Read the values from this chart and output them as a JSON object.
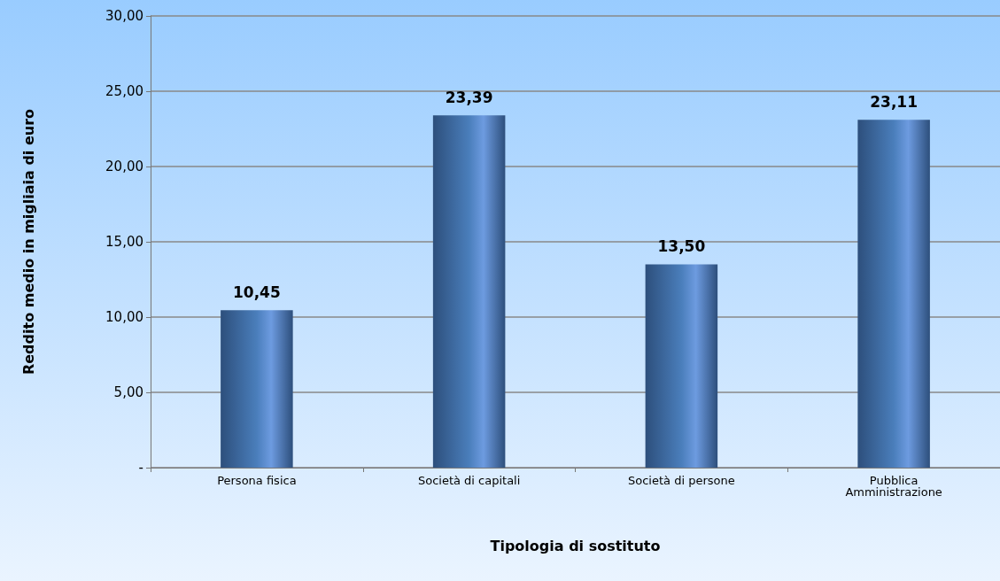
{
  "chart_data": {
    "type": "bar",
    "xlabel": "Tipologia di sostituto",
    "ylabel": "Reddito medio in migliaia di euro",
    "categories": [
      "Persona fisica",
      "Società di capitali",
      "Società di persone",
      "Pubblica\nAmministrazione"
    ],
    "values": [
      10.45,
      23.39,
      13.5,
      23.11
    ],
    "color": "#4a7ebb",
    "value_labels": [
      "10,45",
      "23,39",
      "13,50",
      "23,11"
    ],
    "ylim": [
      0,
      30
    ],
    "yticks": [
      {
        "value": 0,
        "label": "-"
      },
      {
        "value": 5,
        "label": "5,00"
      },
      {
        "value": 10,
        "label": "10,00"
      },
      {
        "value": 15,
        "label": "15,00"
      },
      {
        "value": 20,
        "label": "20,00"
      },
      {
        "value": 25,
        "label": "25,00"
      },
      {
        "value": 30,
        "label": "30,00"
      }
    ],
    "grid": "y"
  }
}
